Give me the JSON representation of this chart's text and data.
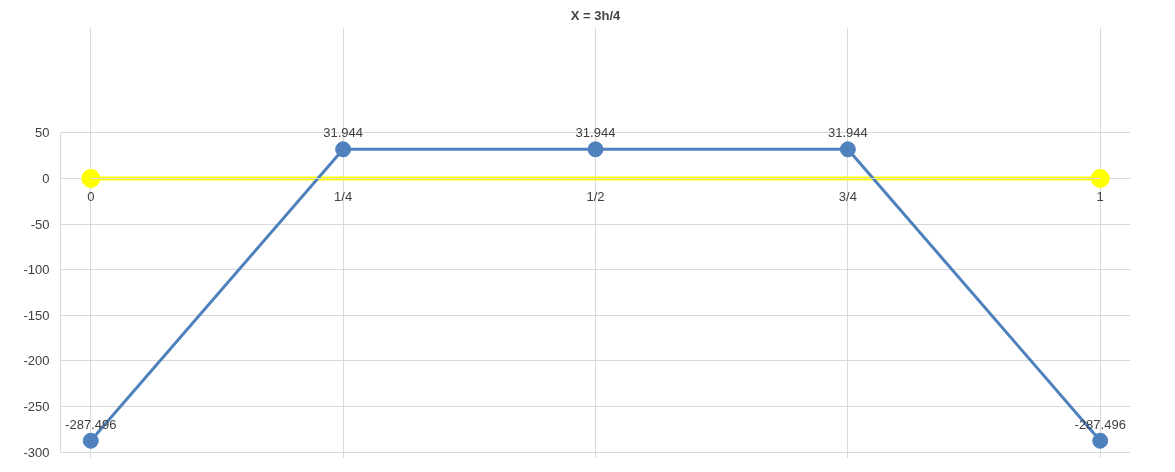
{
  "chart_data": {
    "type": "line",
    "title": "X = 3h/4",
    "x": [
      0,
      0.25,
      0.5,
      0.75,
      1
    ],
    "series": [
      {
        "color": "#4f81bd",
        "values": [
          -287.496,
          31.944,
          31.944,
          31.944,
          -287.496
        ],
        "value_labels": [
          "-287.496",
          "31.944",
          "31.944",
          "31.944",
          "-287.496"
        ]
      },
      {
        "color": "#ffff00",
        "x": [
          0,
          1
        ],
        "values": [
          0,
          0
        ]
      }
    ],
    "xlim": [
      0,
      1
    ],
    "xticks": [
      {
        "value": 0,
        "label": "0"
      },
      {
        "value": 0.25,
        "label": "1/4"
      },
      {
        "value": 0.5,
        "label": "1/2"
      },
      {
        "value": 0.75,
        "label": "3/4"
      },
      {
        "value": 1,
        "label": "1"
      }
    ],
    "ylim": [
      -300,
      50
    ],
    "yticks": [
      -300,
      -250,
      -200,
      -150,
      -100,
      -50,
      0,
      50
    ],
    "grid": true,
    "marker": "circle"
  }
}
